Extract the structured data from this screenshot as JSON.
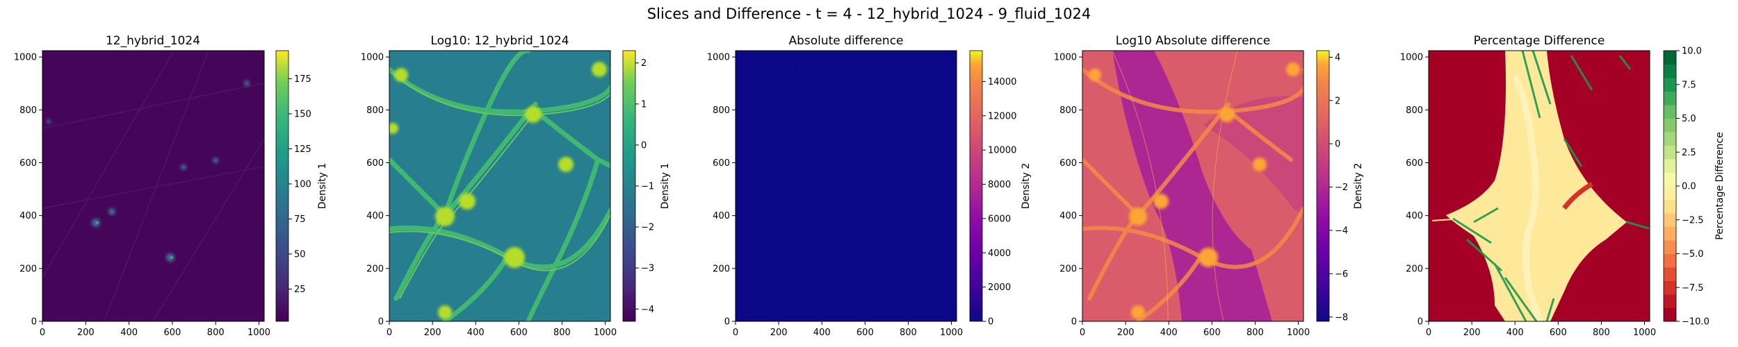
{
  "figure": {
    "suptitle": "Slices and Difference - t = 4 - 12_hybrid_1024 - 9_fluid_1024"
  },
  "chart_data": [
    {
      "type": "heatmap",
      "title": "12_hybrid_1024",
      "xlim": [
        0,
        1024
      ],
      "ylim": [
        0,
        1024
      ],
      "xticks": [
        "0",
        "200",
        "400",
        "600",
        "800",
        "1000"
      ],
      "yticks": [
        "0",
        "200",
        "400",
        "600",
        "800",
        "1000"
      ],
      "colorbar": {
        "label": "Density 1",
        "colormap": "viridis",
        "range": [
          2,
          195
        ],
        "ticks": [
          "25",
          "50",
          "75",
          "100",
          "125",
          "150",
          "175"
        ]
      }
    },
    {
      "type": "heatmap",
      "title": "Log10: 12_hybrid_1024",
      "xlim": [
        0,
        1024
      ],
      "ylim": [
        0,
        1024
      ],
      "xticks": [
        "0",
        "200",
        "400",
        "600",
        "800",
        "1000"
      ],
      "yticks": [
        "0",
        "200",
        "400",
        "600",
        "800",
        "1000"
      ],
      "colorbar": {
        "label": "Density 1",
        "colormap": "viridis",
        "range": [
          -4.3,
          2.3
        ],
        "ticks": [
          "−4",
          "−3",
          "−2",
          "−1",
          "0",
          "1",
          "2"
        ]
      }
    },
    {
      "type": "heatmap",
      "title": "Absolute difference",
      "xlim": [
        0,
        1024
      ],
      "ylim": [
        0,
        1024
      ],
      "xticks": [
        "0",
        "200",
        "400",
        "600",
        "800",
        "1000"
      ],
      "yticks": [
        "0",
        "200",
        "400",
        "600",
        "800",
        "1000"
      ],
      "colorbar": {
        "label": "Density 2",
        "colormap": "plasma",
        "range": [
          0,
          15800
        ],
        "ticks": [
          "0",
          "2000",
          "4000",
          "6000",
          "8000",
          "10000",
          "12000",
          "14000"
        ]
      }
    },
    {
      "type": "heatmap",
      "title": "Log10 Absolute difference",
      "xlim": [
        0,
        1024
      ],
      "ylim": [
        0,
        1024
      ],
      "xticks": [
        "0",
        "200",
        "400",
        "600",
        "800",
        "1000"
      ],
      "yticks": [
        "0",
        "200",
        "400",
        "600",
        "800",
        "1000"
      ],
      "colorbar": {
        "label": "Density 2",
        "colormap": "plasma",
        "range": [
          -8.2,
          4.3
        ],
        "ticks": [
          "−8",
          "−6",
          "−4",
          "−2",
          "0",
          "2",
          "4"
        ]
      }
    },
    {
      "type": "heatmap",
      "title": "Percentage Difference",
      "xlim": [
        0,
        1024
      ],
      "ylim": [
        0,
        1024
      ],
      "xticks": [
        "0",
        "200",
        "400",
        "600",
        "800",
        "1000"
      ],
      "yticks": [
        "0",
        "200",
        "400",
        "600",
        "800",
        "1000"
      ],
      "colorbar": {
        "label": "Percentage Difference",
        "colormap": "RdYlGn",
        "range": [
          -10,
          10
        ],
        "ticks": [
          "−10.0",
          "−7.5",
          "−5.0",
          "−2.5",
          "0.0",
          "2.5",
          "5.0",
          "7.5",
          "10.0"
        ]
      }
    }
  ]
}
